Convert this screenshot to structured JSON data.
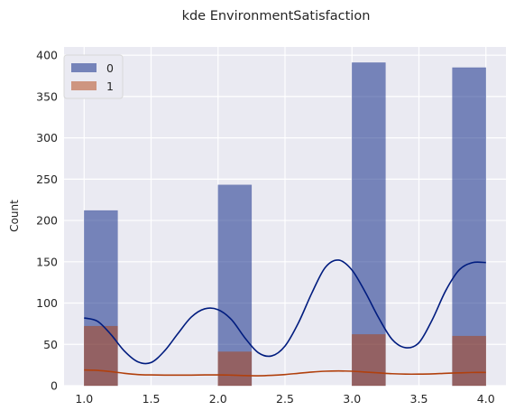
{
  "chart_data": {
    "type": "bar",
    "title": "kde EnvironmentSatisfaction",
    "xlabel": "",
    "ylabel": "Count",
    "xlim": [
      0.85,
      4.15
    ],
    "ylim": [
      0,
      410
    ],
    "xticks": [
      1.0,
      1.5,
      2.0,
      2.5,
      3.0,
      3.5,
      4.0
    ],
    "xtick_labels": [
      "1.0",
      "1.5",
      "2.0",
      "2.5",
      "3.0",
      "3.5",
      "4.0"
    ],
    "yticks": [
      0,
      50,
      100,
      150,
      200,
      250,
      300,
      350,
      400
    ],
    "ytick_labels": [
      "0",
      "50",
      "100",
      "150",
      "200",
      "250",
      "300",
      "350",
      "400"
    ],
    "grid": true,
    "legend_placement": "top-left",
    "bin_edges": [
      1.0,
      1.25,
      1.5,
      1.75,
      2.0,
      2.25,
      2.5,
      2.75,
      3.0,
      3.25,
      3.5,
      3.75,
      4.0
    ],
    "series": [
      {
        "name": "0",
        "color": "#001c7f",
        "counts": [
          212,
          0,
          0,
          0,
          243,
          0,
          0,
          0,
          391,
          0,
          0,
          385
        ],
        "kde": {
          "x": [
            1.0,
            1.1,
            1.2,
            1.3,
            1.4,
            1.5,
            1.6,
            1.7,
            1.8,
            1.9,
            2.0,
            2.1,
            2.2,
            2.3,
            2.4,
            2.5,
            2.6,
            2.7,
            2.8,
            2.9,
            3.0,
            3.1,
            3.2,
            3.3,
            3.4,
            3.5,
            3.6,
            3.7,
            3.8,
            3.9,
            4.0
          ],
          "y": [
            82,
            78,
            62,
            42,
            29,
            28,
            42,
            63,
            83,
            93,
            92,
            80,
            58,
            40,
            36,
            48,
            76,
            112,
            143,
            152,
            140,
            113,
            82,
            56,
            46,
            52,
            80,
            115,
            140,
            149,
            149
          ]
        }
      },
      {
        "name": "1",
        "color": "#b1400d",
        "counts": [
          72,
          0,
          0,
          0,
          41,
          0,
          0,
          0,
          62,
          0,
          0,
          60
        ],
        "kde": {
          "x": [
            1.0,
            1.1,
            1.2,
            1.3,
            1.4,
            1.5,
            1.6,
            1.7,
            1.8,
            1.9,
            2.0,
            2.1,
            2.2,
            2.3,
            2.4,
            2.5,
            2.6,
            2.7,
            2.8,
            2.9,
            3.0,
            3.1,
            3.2,
            3.3,
            3.4,
            3.5,
            3.6,
            3.7,
            3.8,
            3.9,
            4.0
          ],
          "y": [
            19,
            18.5,
            17,
            15,
            13.5,
            13,
            12.8,
            12.8,
            12.8,
            13,
            13,
            12.8,
            12.2,
            12,
            12.5,
            13.5,
            15,
            16.5,
            17.5,
            17.8,
            17.5,
            16.5,
            15.5,
            14.5,
            14,
            14,
            14.3,
            15,
            15.5,
            16,
            16
          ]
        }
      }
    ]
  }
}
